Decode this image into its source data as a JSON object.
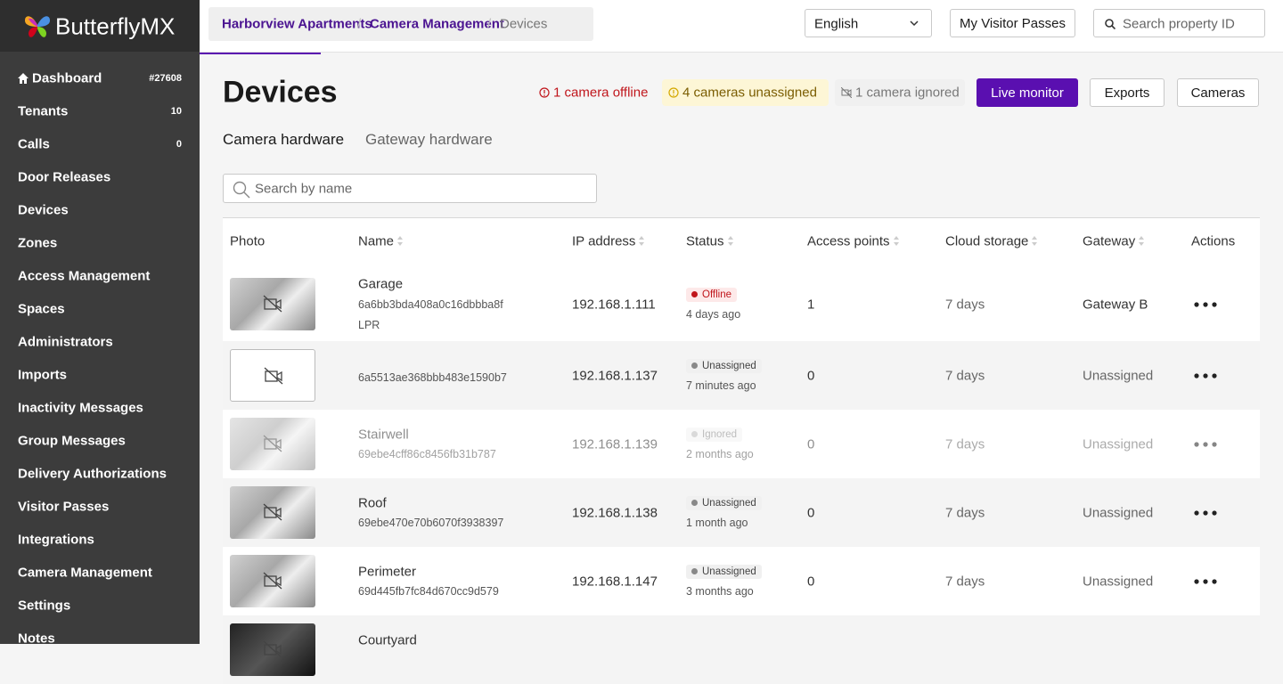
{
  "sidebar": {
    "brand": "ButterflyMX",
    "nav": [
      {
        "label": "Dashboard",
        "badge": "#27608"
      },
      {
        "label": "Tenants",
        "badge": "10"
      },
      {
        "label": "Calls",
        "badge": "0"
      },
      {
        "label": "Door Releases"
      },
      {
        "label": "Devices"
      },
      {
        "label": "Zones"
      },
      {
        "label": "Access Management"
      },
      {
        "label": "Spaces"
      },
      {
        "label": "Administrators"
      },
      {
        "label": "Imports"
      },
      {
        "label": "Inactivity Messages"
      },
      {
        "label": "Group Messages"
      },
      {
        "label": "Delivery Authorizations"
      },
      {
        "label": "Visitor Passes"
      },
      {
        "label": "Integrations"
      },
      {
        "label": "Camera Management",
        "active": true
      },
      {
        "label": "Settings"
      },
      {
        "label": "Notes"
      }
    ]
  },
  "breadcrumb": [
    "Harborview Apartments",
    "Camera Management",
    "Devices"
  ],
  "header": {
    "language": "English",
    "visitor_passes": "My Visitor Passes",
    "search_placeholder": "Search property ID"
  },
  "page": {
    "title": "Devices",
    "alerts": [
      {
        "text": "1 camera offline",
        "level": "error"
      },
      {
        "text": "4 cameras unassigned",
        "level": "warning"
      },
      {
        "text": "1 camera ignored",
        "level": "muted"
      }
    ],
    "buttons": [
      {
        "label": "Live monitor",
        "primary": true
      },
      {
        "label": "Exports"
      },
      {
        "label": "Cameras"
      }
    ],
    "tabs": [
      {
        "label": "Camera hardware",
        "active": true
      },
      {
        "label": "Gateway hardware"
      }
    ],
    "search_placeholder": "Search by name"
  },
  "table": {
    "columns": [
      {
        "label": "Photo"
      },
      {
        "label": "Name",
        "sortable": true
      },
      {
        "label": "IP address",
        "sortable": true
      },
      {
        "label": "Status",
        "sortable": true
      },
      {
        "label": "Access points",
        "sortable": true
      },
      {
        "label": "Cloud storage",
        "sortable": true
      },
      {
        "label": "Gateway",
        "sortable": true
      },
      {
        "label": "Actions"
      }
    ],
    "rows": [
      {
        "photo": true,
        "name": "Garage",
        "id": "6a6bb3bda408a0c16dbbba8f",
        "tag": "LPR",
        "ip": "192.168.1.111",
        "status": "Offline",
        "status_time": "4 days ago",
        "access_points": "1",
        "cloud_storage": "7 days",
        "gateway": "Gateway B"
      },
      {
        "photo": false,
        "id": "6a5513ae368bbb483e1590b7",
        "ip": "192.168.1.137",
        "status": "Unassigned",
        "status_time": "7 minutes ago",
        "access_points": "0",
        "cloud_storage": "7 days",
        "gateway": "Unassigned"
      },
      {
        "photo": true,
        "dimmed": true,
        "name": "Stairwell",
        "id": "69ebe4cff86c8456fb31b787",
        "ip": "192.168.1.139",
        "status": "Ignored",
        "status_time": "2 months ago",
        "access_points": "0",
        "cloud_storage": "7 days",
        "gateway": "Unassigned"
      },
      {
        "photo": true,
        "name": "Roof",
        "id": "69ebe470e70b6070f3938397",
        "ip": "192.168.1.138",
        "status": "Unassigned",
        "status_time": "1 month ago",
        "access_points": "0",
        "cloud_storage": "7 days",
        "gateway": "Unassigned"
      },
      {
        "photo": true,
        "name": "Perimeter",
        "id": "69d445fb7fc84d670cc9d579",
        "ip": "192.168.1.147",
        "status": "Unassigned",
        "status_time": "3 months ago",
        "access_points": "0",
        "cloud_storage": "7 days",
        "gateway": "Unassigned"
      },
      {
        "photo": true,
        "dark": true,
        "name": "Courtyard"
      }
    ]
  }
}
